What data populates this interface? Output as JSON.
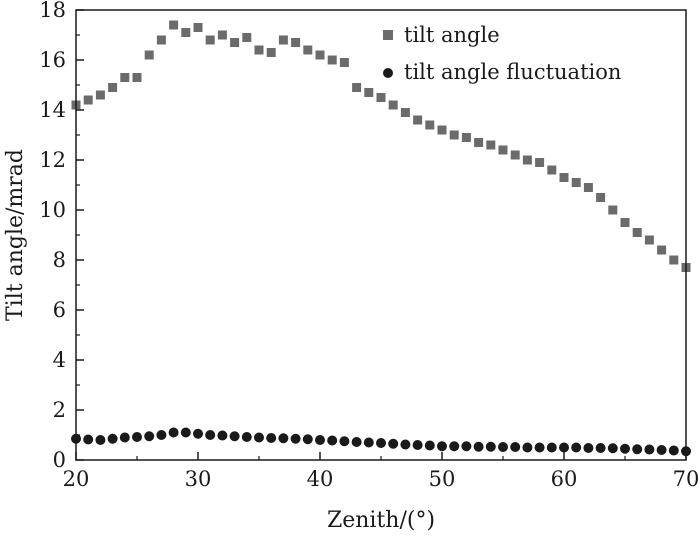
{
  "chart_data": {
    "type": "scatter",
    "xlabel": "Zenith/(°)",
    "ylabel": "Tilt angle/mrad",
    "xlim": [
      20,
      70
    ],
    "ylim": [
      0,
      18
    ],
    "x_ticks": [
      20,
      30,
      40,
      50,
      60,
      70
    ],
    "y_ticks": [
      0,
      2,
      4,
      6,
      8,
      10,
      12,
      14,
      16,
      18
    ],
    "grid": false,
    "legend_position": "top-right",
    "series": [
      {
        "name": "tilt angle",
        "marker": "square",
        "color": "#6b6b6b",
        "x": [
          20,
          21,
          22,
          23,
          24,
          25,
          26,
          27,
          28,
          29,
          30,
          31,
          32,
          33,
          34,
          35,
          36,
          37,
          38,
          39,
          40,
          41,
          42,
          43,
          44,
          45,
          46,
          47,
          48,
          49,
          50,
          51,
          52,
          53,
          54,
          55,
          56,
          57,
          58,
          59,
          60,
          61,
          62,
          63,
          64,
          65,
          66,
          67,
          68,
          69,
          70
        ],
        "y": [
          14.2,
          14.4,
          14.6,
          14.9,
          15.3,
          15.3,
          16.2,
          16.8,
          17.4,
          17.1,
          17.3,
          16.8,
          17.0,
          16.7,
          16.9,
          16.4,
          16.3,
          16.8,
          16.7,
          16.4,
          16.2,
          16.0,
          15.9,
          14.9,
          14.7,
          14.5,
          14.2,
          13.9,
          13.6,
          13.4,
          13.2,
          13.0,
          12.9,
          12.7,
          12.6,
          12.4,
          12.2,
          12.0,
          11.9,
          11.6,
          11.3,
          11.1,
          10.9,
          10.5,
          10.0,
          9.5,
          9.1,
          8.8,
          8.4,
          8.0,
          7.7
        ]
      },
      {
        "name": "tilt angle fluctuation",
        "marker": "circle",
        "color": "#1a1a1a",
        "x": [
          20,
          21,
          22,
          23,
          24,
          25,
          26,
          27,
          28,
          29,
          30,
          31,
          32,
          33,
          34,
          35,
          36,
          37,
          38,
          39,
          40,
          41,
          42,
          43,
          44,
          45,
          46,
          47,
          48,
          49,
          50,
          51,
          52,
          53,
          54,
          55,
          56,
          57,
          58,
          59,
          60,
          61,
          62,
          63,
          64,
          65,
          66,
          67,
          68,
          69,
          70
        ],
        "y": [
          0.85,
          0.82,
          0.8,
          0.85,
          0.9,
          0.92,
          0.95,
          1.0,
          1.1,
          1.1,
          1.05,
          1.0,
          0.98,
          0.95,
          0.92,
          0.9,
          0.88,
          0.87,
          0.85,
          0.83,
          0.8,
          0.78,
          0.75,
          0.72,
          0.7,
          0.68,
          0.65,
          0.62,
          0.6,
          0.58,
          0.55,
          0.55,
          0.55,
          0.53,
          0.53,
          0.52,
          0.52,
          0.5,
          0.5,
          0.5,
          0.5,
          0.5,
          0.48,
          0.48,
          0.47,
          0.45,
          0.43,
          0.42,
          0.4,
          0.38,
          0.35
        ]
      }
    ]
  }
}
